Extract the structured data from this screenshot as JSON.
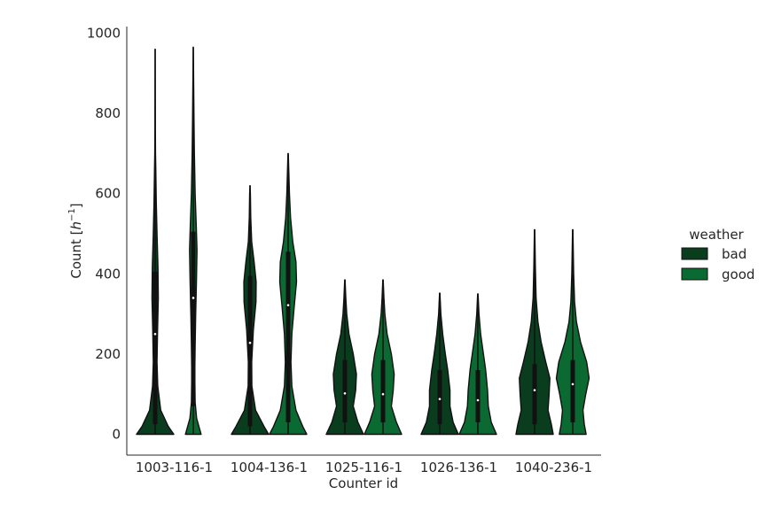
{
  "chart_data": {
    "type": "violin",
    "xlabel": "Counter id",
    "ylabel": "Count [h⁻¹]",
    "ylabel_main": "Count [",
    "ylabel_var": "h",
    "ylabel_sup": "−1",
    "ylabel_close": "]",
    "ylim": [
      -50,
      1010
    ],
    "yticks": [
      0,
      200,
      400,
      600,
      800,
      1000
    ],
    "grid": false,
    "legend": {
      "title": "weather",
      "placement": "right",
      "entries": [
        "bad",
        "good"
      ]
    },
    "colors": {
      "bad": "#0a3d1e",
      "good": "#0b6a32",
      "box": "#111111",
      "median": "#ffffff",
      "edge": "#111111"
    },
    "categories": [
      "1003-116-1",
      "1004-136-1",
      "1025-116-1",
      "1026-136-1",
      "1040-236-1"
    ],
    "series": [
      {
        "name": "bad",
        "min": [
          0,
          0,
          0,
          0,
          0
        ],
        "max": [
          960,
          620,
          385,
          352,
          510
        ],
        "q1": [
          25,
          20,
          30,
          25,
          25
        ],
        "median": [
          250,
          228,
          102,
          88,
          110
        ],
        "q3": [
          405,
          395,
          185,
          160,
          175
        ],
        "density": [
          [
            [
              0,
              1.0
            ],
            [
              20,
              0.7
            ],
            [
              60,
              0.3
            ],
            [
              120,
              0.14
            ],
            [
              180,
              0.1
            ],
            [
              260,
              0.13
            ],
            [
              340,
              0.17
            ],
            [
              420,
              0.15
            ],
            [
              500,
              0.1
            ],
            [
              580,
              0.06
            ],
            [
              660,
              0.035
            ],
            [
              700,
              0.02
            ],
            [
              760,
              0.012
            ],
            [
              850,
              0.008
            ],
            [
              960,
              0.004
            ]
          ],
          [
            [
              0,
              1.0
            ],
            [
              20,
              0.75
            ],
            [
              60,
              0.3
            ],
            [
              120,
              0.1
            ],
            [
              180,
              0.09
            ],
            [
              260,
              0.18
            ],
            [
              330,
              0.32
            ],
            [
              380,
              0.33
            ],
            [
              430,
              0.22
            ],
            [
              480,
              0.09
            ],
            [
              540,
              0.04
            ],
            [
              600,
              0.02
            ],
            [
              620,
              0.004
            ]
          ],
          [
            [
              0,
              1.0
            ],
            [
              30,
              0.7
            ],
            [
              70,
              0.45
            ],
            [
              110,
              0.58
            ],
            [
              150,
              0.62
            ],
            [
              200,
              0.45
            ],
            [
              250,
              0.22
            ],
            [
              300,
              0.1
            ],
            [
              340,
              0.05
            ],
            [
              385,
              0.01
            ]
          ],
          [
            [
              0,
              1.0
            ],
            [
              30,
              0.72
            ],
            [
              70,
              0.55
            ],
            [
              110,
              0.55
            ],
            [
              160,
              0.43
            ],
            [
              200,
              0.3
            ],
            [
              250,
              0.16
            ],
            [
              300,
              0.06
            ],
            [
              352,
              0.01
            ]
          ],
          [
            [
              0,
              1.0
            ],
            [
              25,
              0.9
            ],
            [
              60,
              0.72
            ],
            [
              100,
              0.78
            ],
            [
              140,
              0.82
            ],
            [
              180,
              0.6
            ],
            [
              230,
              0.35
            ],
            [
              280,
              0.18
            ],
            [
              340,
              0.08
            ],
            [
              420,
              0.04
            ],
            [
              510,
              0.01
            ]
          ]
        ]
      },
      {
        "name": "good",
        "min": [
          0,
          0,
          0,
          0,
          0
        ],
        "max": [
          965,
          700,
          385,
          350,
          510
        ],
        "q1": [
          70,
          30,
          30,
          30,
          30
        ],
        "median": [
          340,
          322,
          100,
          85,
          125
        ],
        "q3": [
          505,
          455,
          185,
          160,
          185
        ],
        "density": [
          [
            [
              0,
              0.42
            ],
            [
              40,
              0.18
            ],
            [
              80,
              0.1
            ],
            [
              150,
              0.08
            ],
            [
              220,
              0.1
            ],
            [
              300,
              0.13
            ],
            [
              380,
              0.17
            ],
            [
              460,
              0.2
            ],
            [
              520,
              0.16
            ],
            [
              600,
              0.1
            ],
            [
              700,
              0.06
            ],
            [
              780,
              0.04
            ],
            [
              880,
              0.02
            ],
            [
              965,
              0.005
            ]
          ],
          [
            [
              0,
              1.0
            ],
            [
              20,
              0.78
            ],
            [
              60,
              0.42
            ],
            [
              120,
              0.2
            ],
            [
              180,
              0.15
            ],
            [
              250,
              0.2
            ],
            [
              320,
              0.33
            ],
            [
              380,
              0.45
            ],
            [
              430,
              0.42
            ],
            [
              480,
              0.25
            ],
            [
              540,
              0.13
            ],
            [
              600,
              0.07
            ],
            [
              650,
              0.04
            ],
            [
              700,
              0.008
            ]
          ],
          [
            [
              0,
              1.0
            ],
            [
              30,
              0.72
            ],
            [
              70,
              0.45
            ],
            [
              110,
              0.55
            ],
            [
              150,
              0.6
            ],
            [
              200,
              0.45
            ],
            [
              250,
              0.22
            ],
            [
              300,
              0.1
            ],
            [
              340,
              0.05
            ],
            [
              385,
              0.01
            ]
          ],
          [
            [
              0,
              1.0
            ],
            [
              30,
              0.72
            ],
            [
              70,
              0.56
            ],
            [
              110,
              0.52
            ],
            [
              160,
              0.42
            ],
            [
              200,
              0.3
            ],
            [
              250,
              0.15
            ],
            [
              300,
              0.06
            ],
            [
              350,
              0.01
            ]
          ],
          [
            [
              0,
              0.72
            ],
            [
              25,
              0.62
            ],
            [
              60,
              0.55
            ],
            [
              100,
              0.7
            ],
            [
              140,
              0.88
            ],
            [
              180,
              0.75
            ],
            [
              230,
              0.42
            ],
            [
              280,
              0.2
            ],
            [
              330,
              0.1
            ],
            [
              400,
              0.05
            ],
            [
              510,
              0.01
            ]
          ]
        ]
      }
    ]
  }
}
